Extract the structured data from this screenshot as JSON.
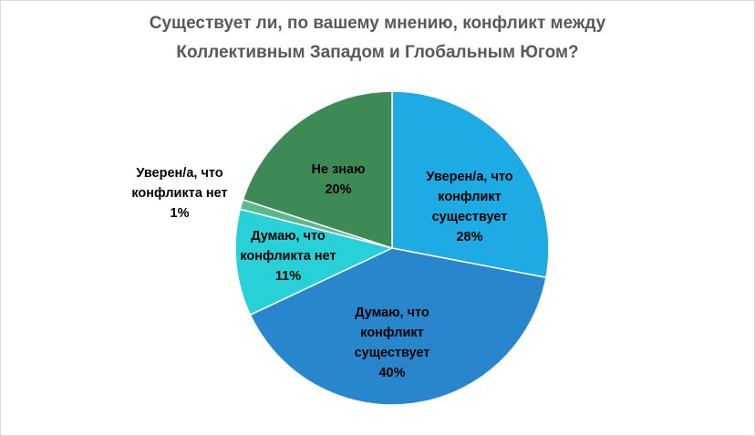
{
  "chart_data": {
    "type": "pie",
    "title_lines": [
      "Существует ли, по вашему мнению, конфликт между",
      "Коллективным Западом  и Глобальным  Югом?"
    ],
    "slices": [
      {
        "label": "Уверен/а, что конфликт существует",
        "value": 28,
        "color": "#1eaae2"
      },
      {
        "label": "Думаю, что конфликт существует",
        "value": 40,
        "color": "#2886cc"
      },
      {
        "label": "Думаю, что конфликта нет",
        "value": 11,
        "color": "#28d0d8"
      },
      {
        "label": "Уверен/а, что конфликта нет",
        "value": 1,
        "color": "#5ab88a"
      },
      {
        "label": "Не знаю",
        "value": 20,
        "color": "#3e8a57"
      }
    ],
    "labels": [
      {
        "lines": [
          "Уверен/а, что",
          "конфликт",
          "существует",
          "28%"
        ]
      },
      {
        "lines": [
          "Думаю, что",
          "конфликт",
          "существует",
          "40%"
        ]
      },
      {
        "lines": [
          "Думаю, что",
          "конфликта нет",
          "11%"
        ]
      },
      {
        "lines": [
          "Уверен/а, что",
          "конфликта нет",
          "1%"
        ]
      },
      {
        "lines": [
          "Не знаю",
          "20%"
        ]
      }
    ],
    "start_angle_deg": 0,
    "direction": "clockwise",
    "legend": "none"
  }
}
